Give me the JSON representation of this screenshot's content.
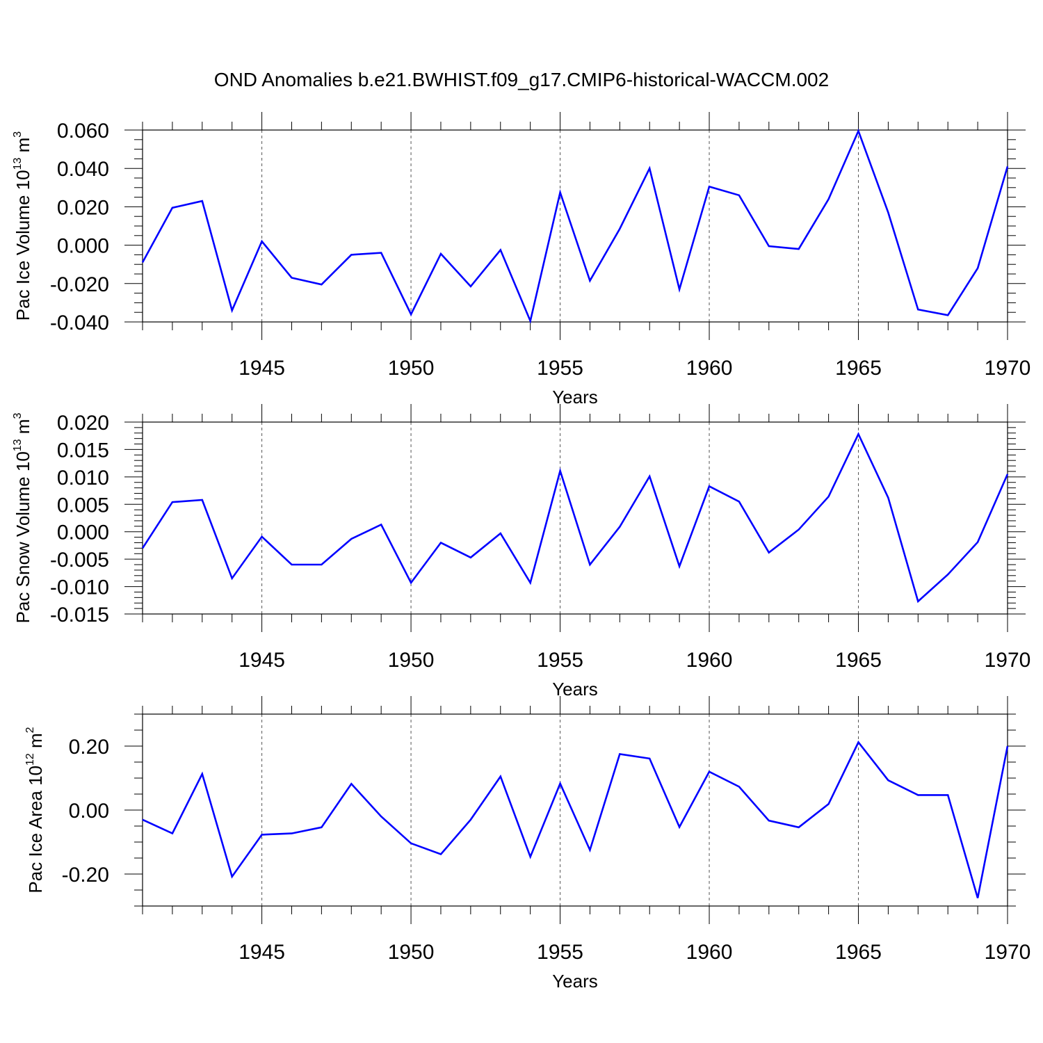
{
  "title": "OND Anomalies b.e21.BWHIST.f09_g17.CMIP6-historical-WACCM.002",
  "colors": {
    "line": "#0000ff",
    "axis": "#000000",
    "grid": "#555555"
  },
  "chart_data": [
    {
      "type": "line",
      "ylabel_main": "Pac Ice Volume 10",
      "ylabel_exp": "13",
      "ylabel_unit": " m",
      "ylabel_unit_exp": "3",
      "xlabel": "Years",
      "xlim": [
        1941,
        1970
      ],
      "ylim": [
        -0.04,
        0.06
      ],
      "x_ticks": [
        1945,
        1950,
        1955,
        1960,
        1965,
        1970
      ],
      "x_tick_labels": [
        "1945",
        "1950",
        "1955",
        "1960",
        "1965",
        "1970"
      ],
      "y_ticks": [
        -0.04,
        -0.02,
        0.0,
        0.02,
        0.04,
        0.06
      ],
      "y_tick_labels": [
        "-0.040",
        "-0.020",
        "0.000",
        "0.020",
        "0.040",
        "0.060"
      ],
      "y_minor_step": 0.005,
      "grid_x": true,
      "series": [
        {
          "name": "Pac Ice Volume",
          "x": [
            1941,
            1942,
            1943,
            1944,
            1945,
            1946,
            1947,
            1948,
            1949,
            1950,
            1951,
            1952,
            1953,
            1954,
            1955,
            1956,
            1957,
            1958,
            1959,
            1960,
            1961,
            1962,
            1963,
            1964,
            1965,
            1966,
            1967,
            1968,
            1969,
            1970
          ],
          "values": [
            -0.009,
            0.0195,
            0.023,
            -0.034,
            0.002,
            -0.017,
            -0.0205,
            -0.005,
            -0.004,
            -0.036,
            -0.0045,
            -0.0215,
            -0.0025,
            -0.0395,
            0.0275,
            -0.0185,
            0.0085,
            0.04,
            -0.023,
            0.0305,
            0.026,
            -0.0005,
            -0.002,
            0.024,
            0.0595,
            0.017,
            -0.0335,
            -0.0365,
            -0.012,
            0.041
          ]
        }
      ]
    },
    {
      "type": "line",
      "ylabel_main": "Pac Snow Volume 10",
      "ylabel_exp": "13",
      "ylabel_unit": " m",
      "ylabel_unit_exp": "3",
      "xlabel": "Years",
      "xlim": [
        1941,
        1970
      ],
      "ylim": [
        -0.015,
        0.02
      ],
      "x_ticks": [
        1945,
        1950,
        1955,
        1960,
        1965,
        1970
      ],
      "x_tick_labels": [
        "1945",
        "1950",
        "1955",
        "1960",
        "1965",
        "1970"
      ],
      "y_ticks": [
        -0.015,
        -0.01,
        -0.005,
        0.0,
        0.005,
        0.01,
        0.015,
        0.02
      ],
      "y_tick_labels": [
        "-0.015",
        "-0.010",
        "-0.005",
        "0.000",
        "0.005",
        "0.010",
        "0.015",
        "0.020"
      ],
      "y_minor_step": 0.001,
      "grid_x": true,
      "series": [
        {
          "name": "Pac Snow Volume",
          "x": [
            1941,
            1942,
            1943,
            1944,
            1945,
            1946,
            1947,
            1948,
            1949,
            1950,
            1951,
            1952,
            1953,
            1954,
            1955,
            1956,
            1957,
            1958,
            1959,
            1960,
            1961,
            1962,
            1963,
            1964,
            1965,
            1966,
            1967,
            1968,
            1969,
            1970
          ],
          "values": [
            -0.003,
            0.0054,
            0.0058,
            -0.0085,
            -0.0009,
            -0.006,
            -0.006,
            -0.0013,
            0.0013,
            -0.0093,
            -0.002,
            -0.0047,
            -0.0003,
            -0.0093,
            0.0111,
            -0.006,
            0.0009,
            0.0101,
            -0.0063,
            0.0083,
            0.0055,
            -0.0038,
            0.0004,
            0.0064,
            0.0178,
            0.0062,
            -0.0127,
            -0.0078,
            -0.0019,
            0.0105
          ]
        }
      ]
    },
    {
      "type": "line",
      "ylabel_main": "Pac Ice Area 10",
      "ylabel_exp": "12",
      "ylabel_unit": " m",
      "ylabel_unit_exp": "2",
      "xlabel": "Years",
      "xlim": [
        1941,
        1970
      ],
      "ylim": [
        -0.3,
        0.3
      ],
      "x_ticks": [
        1945,
        1950,
        1955,
        1960,
        1965,
        1970
      ],
      "x_tick_labels": [
        "1945",
        "1950",
        "1955",
        "1960",
        "1965",
        "1970"
      ],
      "y_ticks": [
        -0.2,
        0.0,
        0.2
      ],
      "y_tick_labels": [
        "-0.20",
        "0.00",
        "0.20"
      ],
      "y_minor_step": 0.05,
      "grid_x": true,
      "series": [
        {
          "name": "Pac Ice Area",
          "x": [
            1941,
            1942,
            1943,
            1944,
            1945,
            1946,
            1947,
            1948,
            1949,
            1950,
            1951,
            1952,
            1953,
            1954,
            1955,
            1956,
            1957,
            1958,
            1959,
            1960,
            1961,
            1962,
            1963,
            1964,
            1965,
            1966,
            1967,
            1968,
            1969,
            1970
          ],
          "values": [
            -0.03,
            -0.073,
            0.113,
            -0.208,
            -0.077,
            -0.073,
            -0.054,
            0.082,
            -0.02,
            -0.104,
            -0.138,
            -0.03,
            0.105,
            -0.146,
            0.083,
            -0.125,
            0.175,
            0.161,
            -0.053,
            0.12,
            0.073,
            -0.033,
            -0.054,
            0.019,
            0.212,
            0.093,
            0.047,
            0.047,
            -0.275,
            0.2
          ]
        }
      ]
    }
  ]
}
